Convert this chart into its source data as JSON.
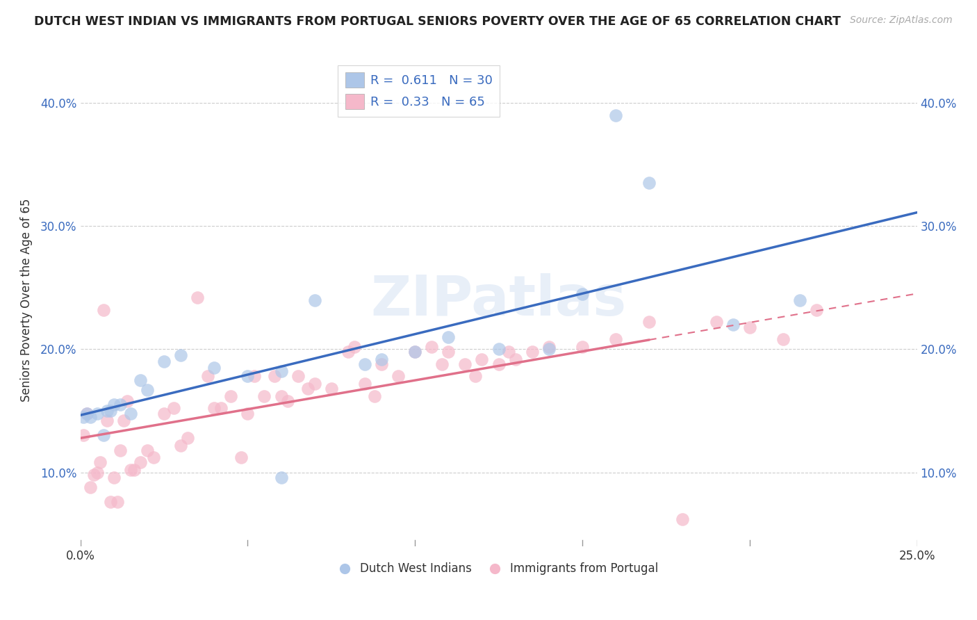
{
  "title": "DUTCH WEST INDIAN VS IMMIGRANTS FROM PORTUGAL SENIORS POVERTY OVER THE AGE OF 65 CORRELATION CHART",
  "source": "Source: ZipAtlas.com",
  "ylabel": "Seniors Poverty Over the Age of 65",
  "xlim": [
    0.0,
    0.25
  ],
  "ylim": [
    0.04,
    0.44
  ],
  "yticks": [
    0.1,
    0.2,
    0.3,
    0.4
  ],
  "ytick_labels": [
    "10.0%",
    "20.0%",
    "30.0%",
    "40.0%"
  ],
  "xticks": [
    0.0,
    0.05,
    0.1,
    0.15,
    0.2,
    0.25
  ],
  "xtick_labels": [
    "0.0%",
    "",
    "",
    "",
    "",
    "25.0%"
  ],
  "blue_R": 0.611,
  "blue_N": 30,
  "pink_R": 0.33,
  "pink_N": 65,
  "blue_color": "#adc6e8",
  "pink_color": "#f5b8ca",
  "blue_line_color": "#3a6bbf",
  "pink_line_color": "#e0708a",
  "background_color": "#ffffff",
  "grid_color": "#cccccc",
  "blue_x": [
    0.001,
    0.002,
    0.003,
    0.005,
    0.007,
    0.008,
    0.009,
    0.01,
    0.012,
    0.015,
    0.018,
    0.02,
    0.025,
    0.03,
    0.04,
    0.05,
    0.06,
    0.07,
    0.085,
    0.09,
    0.1,
    0.11,
    0.125,
    0.14,
    0.16,
    0.195,
    0.215,
    0.15,
    0.17,
    0.06
  ],
  "blue_y": [
    0.145,
    0.148,
    0.145,
    0.148,
    0.13,
    0.15,
    0.15,
    0.155,
    0.155,
    0.148,
    0.175,
    0.167,
    0.19,
    0.195,
    0.185,
    0.178,
    0.182,
    0.24,
    0.188,
    0.192,
    0.198,
    0.21,
    0.2,
    0.2,
    0.39,
    0.22,
    0.24,
    0.245,
    0.335,
    0.096
  ],
  "pink_x": [
    0.001,
    0.002,
    0.003,
    0.004,
    0.005,
    0.006,
    0.007,
    0.008,
    0.009,
    0.01,
    0.011,
    0.012,
    0.013,
    0.014,
    0.015,
    0.016,
    0.018,
    0.02,
    0.022,
    0.025,
    0.028,
    0.03,
    0.032,
    0.035,
    0.038,
    0.04,
    0.042,
    0.045,
    0.048,
    0.05,
    0.052,
    0.055,
    0.058,
    0.06,
    0.062,
    0.065,
    0.068,
    0.07,
    0.075,
    0.08,
    0.082,
    0.085,
    0.088,
    0.09,
    0.095,
    0.1,
    0.105,
    0.108,
    0.11,
    0.115,
    0.118,
    0.12,
    0.125,
    0.128,
    0.13,
    0.135,
    0.14,
    0.15,
    0.16,
    0.17,
    0.18,
    0.19,
    0.2,
    0.21,
    0.22
  ],
  "pink_y": [
    0.13,
    0.148,
    0.088,
    0.098,
    0.1,
    0.108,
    0.232,
    0.142,
    0.076,
    0.096,
    0.076,
    0.118,
    0.142,
    0.158,
    0.102,
    0.102,
    0.108,
    0.118,
    0.112,
    0.148,
    0.152,
    0.122,
    0.128,
    0.242,
    0.178,
    0.152,
    0.152,
    0.162,
    0.112,
    0.148,
    0.178,
    0.162,
    0.178,
    0.162,
    0.158,
    0.178,
    0.168,
    0.172,
    0.168,
    0.198,
    0.202,
    0.172,
    0.162,
    0.188,
    0.178,
    0.198,
    0.202,
    0.188,
    0.198,
    0.188,
    0.178,
    0.192,
    0.188,
    0.198,
    0.192,
    0.198,
    0.202,
    0.202,
    0.208,
    0.222,
    0.062,
    0.222,
    0.218,
    0.208,
    0.232
  ]
}
